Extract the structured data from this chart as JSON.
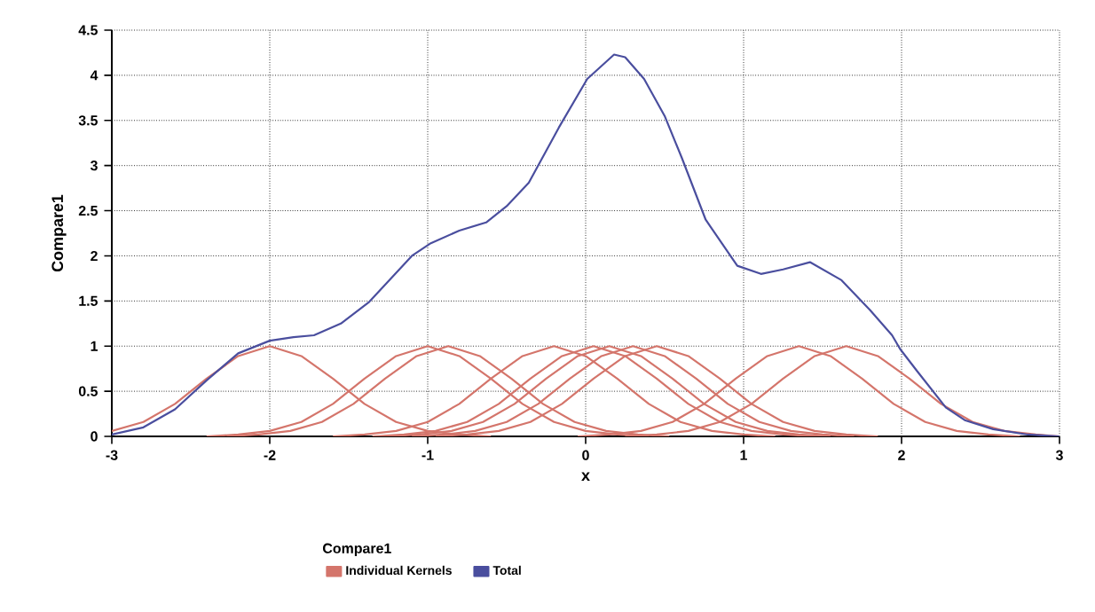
{
  "chart_data": {
    "type": "line",
    "xlabel": "x",
    "ylabel": "Compare1",
    "legend_title": "Compare1",
    "legend": "bottom",
    "grid": true,
    "marker": "none",
    "xlim": [
      -3,
      3
    ],
    "xticks": [
      -3,
      -2,
      -1,
      0,
      1,
      2,
      3
    ],
    "ylim": [
      0,
      4.5
    ],
    "yticks": [
      0,
      0.5,
      1,
      1.5,
      2,
      2.5,
      3,
      3.5,
      4,
      4.5
    ],
    "series": [
      {
        "name": "Individual Kernels",
        "color": "#d4756b",
        "x": [
          -3,
          -2.8,
          -2.6,
          -2.4,
          -2.2,
          -2,
          -1.8,
          -1.6,
          -1.4,
          -1.2,
          -1,
          -0.8,
          -0.6
        ],
        "values": [
          0.06,
          0.16,
          0.36,
          0.64,
          0.89,
          1,
          0.89,
          0.64,
          0.36,
          0.16,
          0.06,
          0.02,
          0
        ]
      },
      {
        "color": "#d4756b",
        "x": [
          -2.4,
          -2.2,
          -2,
          -1.8,
          -1.6,
          -1.4,
          -1.2,
          -1,
          -0.8,
          -0.6,
          -0.4,
          -0.2,
          0,
          0.2,
          0.4
        ],
        "values": [
          0,
          0.02,
          0.06,
          0.16,
          0.36,
          0.64,
          0.89,
          1,
          0.89,
          0.64,
          0.36,
          0.16,
          0.06,
          0.02,
          0
        ]
      },
      {
        "color": "#d4756b",
        "x": [
          -2.27,
          -2.07,
          -1.87,
          -1.67,
          -1.47,
          -1.27,
          -1.07,
          -0.87,
          -0.67,
          -0.47,
          -0.27,
          -0.07,
          0.13,
          0.33,
          0.53
        ],
        "values": [
          0,
          0.02,
          0.06,
          0.16,
          0.36,
          0.64,
          0.89,
          1,
          0.89,
          0.64,
          0.36,
          0.16,
          0.06,
          0.02,
          0
        ]
      },
      {
        "color": "#d4756b",
        "x": [
          -1.6,
          -1.4,
          -1.2,
          -1,
          -0.8,
          -0.6,
          -0.4,
          -0.2,
          0,
          0.2,
          0.4,
          0.6,
          0.8,
          1,
          1.2
        ],
        "values": [
          0,
          0.02,
          0.06,
          0.16,
          0.36,
          0.64,
          0.89,
          1,
          0.89,
          0.64,
          0.36,
          0.16,
          0.06,
          0.02,
          0
        ]
      },
      {
        "color": "#d4756b",
        "x": [
          -1.35,
          -1.15,
          -0.95,
          -0.75,
          -0.55,
          -0.35,
          -0.15,
          0.05,
          0.25,
          0.45,
          0.65,
          0.85,
          1.05,
          1.25,
          1.45
        ],
        "values": [
          0,
          0.02,
          0.06,
          0.16,
          0.36,
          0.64,
          0.89,
          1,
          0.89,
          0.64,
          0.36,
          0.16,
          0.06,
          0.02,
          0
        ]
      },
      {
        "color": "#d4756b",
        "x": [
          -1.25,
          -1.05,
          -0.85,
          -0.65,
          -0.45,
          -0.25,
          -0.05,
          0.15,
          0.35,
          0.55,
          0.75,
          0.95,
          1.15,
          1.35,
          1.55
        ],
        "values": [
          0,
          0.02,
          0.06,
          0.16,
          0.36,
          0.64,
          0.89,
          1,
          0.89,
          0.64,
          0.36,
          0.16,
          0.06,
          0.02,
          0
        ]
      },
      {
        "color": "#d4756b",
        "x": [
          -1.1,
          -0.9,
          -0.7,
          -0.5,
          -0.3,
          -0.1,
          0.1,
          0.3,
          0.5,
          0.7,
          0.9,
          1.1,
          1.3,
          1.5,
          1.7
        ],
        "values": [
          0,
          0.02,
          0.06,
          0.16,
          0.36,
          0.64,
          0.89,
          1,
          0.89,
          0.64,
          0.36,
          0.16,
          0.06,
          0.02,
          0
        ]
      },
      {
        "color": "#d4756b",
        "x": [
          -0.95,
          -0.75,
          -0.55,
          -0.35,
          -0.15,
          0.05,
          0.25,
          0.45,
          0.65,
          0.85,
          1.05,
          1.25,
          1.45,
          1.65,
          1.85
        ],
        "values": [
          0,
          0.02,
          0.06,
          0.16,
          0.36,
          0.64,
          0.89,
          1,
          0.89,
          0.64,
          0.36,
          0.16,
          0.06,
          0.02,
          0
        ]
      },
      {
        "color": "#d4756b",
        "x": [
          -0.05,
          0.15,
          0.35,
          0.55,
          0.75,
          0.95,
          1.15,
          1.35,
          1.55,
          1.75,
          1.95,
          2.15,
          2.35,
          2.55,
          2.75
        ],
        "values": [
          0,
          0.02,
          0.06,
          0.16,
          0.36,
          0.64,
          0.89,
          1,
          0.89,
          0.64,
          0.36,
          0.16,
          0.06,
          0.02,
          0
        ]
      },
      {
        "color": "#d4756b",
        "x": [
          0.25,
          0.45,
          0.65,
          0.85,
          1.05,
          1.25,
          1.45,
          1.65,
          1.85,
          2.05,
          2.25,
          2.45,
          2.65,
          2.85,
          3
        ],
        "values": [
          0,
          0.02,
          0.06,
          0.16,
          0.36,
          0.64,
          0.89,
          1,
          0.89,
          0.64,
          0.36,
          0.16,
          0.06,
          0.02,
          0
        ]
      },
      {
        "name": "Total",
        "color": "#4a4e9e",
        "x": [
          -3,
          -2.8,
          -2.6,
          -2.4,
          -2.2,
          -2,
          -1.85,
          -1.72,
          -1.55,
          -1.37,
          -1.1,
          -0.98,
          -0.8,
          -0.63,
          -0.5,
          -0.36,
          -0.17,
          0.01,
          0.18,
          0.25,
          0.37,
          0.5,
          0.61,
          0.76,
          0.96,
          1.11,
          1.25,
          1.42,
          1.62,
          1.8,
          1.94,
          1.99,
          2.1,
          2.28,
          2.4,
          2.58,
          2.8,
          3
        ],
        "values": [
          0.02,
          0.1,
          0.3,
          0.62,
          0.92,
          1.06,
          1.1,
          1.12,
          1.25,
          1.49,
          2,
          2.14,
          2.28,
          2.37,
          2.55,
          2.81,
          3.42,
          3.96,
          4.23,
          4.2,
          3.96,
          3.55,
          3.08,
          2.4,
          1.89,
          1.8,
          1.85,
          1.93,
          1.73,
          1.4,
          1.12,
          0.97,
          0.72,
          0.32,
          0.18,
          0.08,
          0.02,
          0
        ]
      }
    ]
  }
}
